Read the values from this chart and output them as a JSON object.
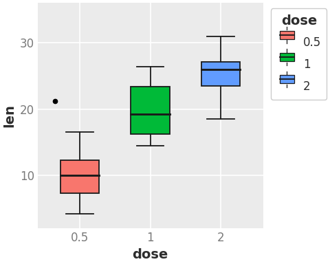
{
  "title": "",
  "xlabel": "dose",
  "ylabel": "len",
  "plot_bg_color": "#EBEBEB",
  "fig_bg_color": "#FFFFFF",
  "legend_bg": "#EBEBEB",
  "grid_color": "#FFFFFF",
  "boxes": [
    {
      "x": 1,
      "q1": 7.3,
      "q2": 10.0,
      "q3": 12.25,
      "whisker_low": 4.2,
      "whisker_high": 16.5,
      "outliers": [
        21.2
      ],
      "color": "#F8766D",
      "edge_color": "#1A1A1A"
    },
    {
      "x": 2,
      "q1": 16.25,
      "q2": 19.25,
      "q3": 23.375,
      "whisker_low": 14.5,
      "whisker_high": 26.4,
      "outliers": [],
      "color": "#00BA38",
      "edge_color": "#1A1A1A"
    },
    {
      "x": 3,
      "q1": 23.525,
      "q2": 25.95,
      "q3": 27.075,
      "whisker_low": 18.5,
      "whisker_high": 30.9,
      "outliers": [],
      "color": "#619CFF",
      "edge_color": "#1A1A1A"
    }
  ],
  "box_width": 0.55,
  "ylim": [
    2,
    36
  ],
  "yticks": [
    10,
    20,
    30
  ],
  "xticks": [
    1,
    2,
    3
  ],
  "xticklabels": [
    "0.5",
    "1",
    "2"
  ],
  "xlim": [
    0.4,
    3.6
  ],
  "legend_title": "dose",
  "legend_labels": [
    "0.5",
    "1",
    "2"
  ],
  "legend_colors": [
    "#F8766D",
    "#00BA38",
    "#619CFF"
  ],
  "axis_text_color": "#7A7A7A",
  "label_color": "#2D2D2D",
  "label_fontsize": 14,
  "tick_fontsize": 12
}
